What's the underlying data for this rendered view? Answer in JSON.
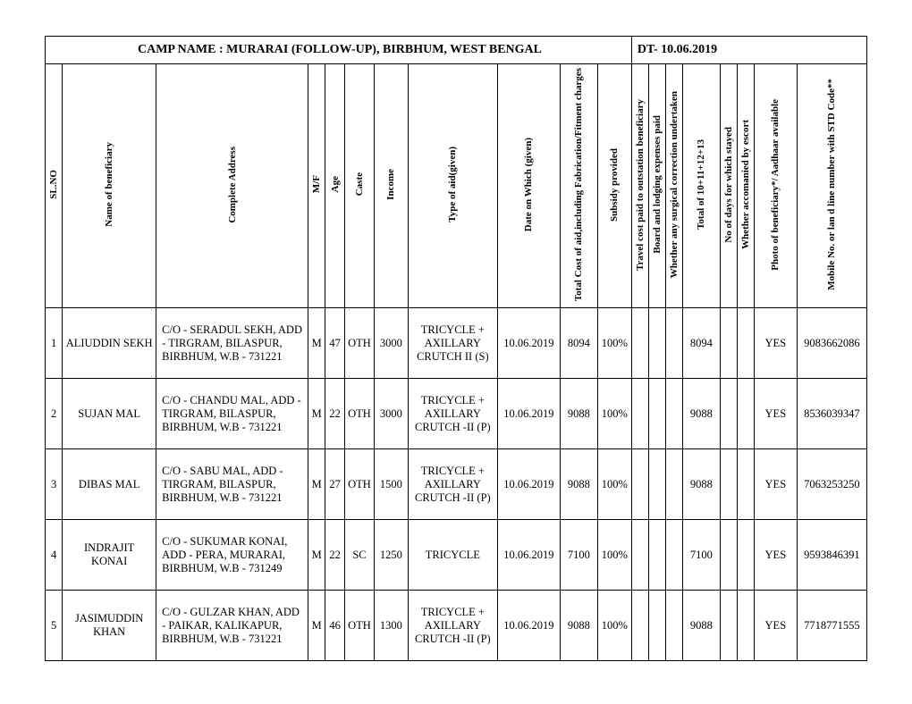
{
  "title": {
    "camp": "CAMP NAME :   MURARAI (FOLLOW-UP), BIRBHUM, WEST BENGAL",
    "date": "DT- 10.06.2019"
  },
  "headers": {
    "sl": "SL.NO",
    "name": "Name of beneficiary",
    "addr": "Complete Address",
    "mf": "M/F",
    "age": "Age",
    "caste": "Caste",
    "income": "Income",
    "aid": "Type of aid(given)",
    "date": "Date on Which (given)",
    "cost": "Total Cost of aid,including Fabrication/Fitment charges",
    "subsidy": "Subsidy provided",
    "travel": "Travel cost paid to outstation beneficiary",
    "board": "Board and lodging expenses paid",
    "surg": "Whether any surgical correction undertaken",
    "total": "Total of 10+11+12+13",
    "days": "No of days for which stayed",
    "escort": "Whether accomanied by escort",
    "photo": "Photo of beneficiary*/ Aadhaar available",
    "mobile": "Mobile No. or lan d line number with STD Code**"
  },
  "rows": [
    {
      "sl": "1",
      "name": "ALIUDDIN SEKH",
      "addr": "C/O - SERADUL SEKH, ADD - TIRGRAM, BILASPUR, BIRBHUM, W.B - 731221",
      "mf": "M",
      "age": "47",
      "caste": "OTH",
      "income": "3000",
      "aid": "TRICYCLE + AXILLARY CRUTCH II (S)",
      "date": "10.06.2019",
      "cost": "8094",
      "subsidy": "100%",
      "travel": "",
      "board": "",
      "surg": "",
      "total": "8094",
      "days": "",
      "escort": "",
      "photo": "YES",
      "mobile": "9083662086"
    },
    {
      "sl": "2",
      "name": "SUJAN MAL",
      "addr": "C/O - CHANDU MAL, ADD - TIRGRAM, BILASPUR, BIRBHUM, W.B - 731221",
      "mf": "M",
      "age": "22",
      "caste": "OTH",
      "income": "3000",
      "aid": "TRICYCLE + AXILLARY CRUTCH -II (P)",
      "date": "10.06.2019",
      "cost": "9088",
      "subsidy": "100%",
      "travel": "",
      "board": "",
      "surg": "",
      "total": "9088",
      "days": "",
      "escort": "",
      "photo": "YES",
      "mobile": "8536039347"
    },
    {
      "sl": "3",
      "name": "DIBAS MAL",
      "addr": "C/O - SABU MAL, ADD - TIRGRAM, BILASPUR, BIRBHUM, W.B - 731221",
      "mf": "M",
      "age": "27",
      "caste": "OTH",
      "income": "1500",
      "aid": "TRICYCLE + AXILLARY CRUTCH -II (P)",
      "date": "10.06.2019",
      "cost": "9088",
      "subsidy": "100%",
      "travel": "",
      "board": "",
      "surg": "",
      "total": "9088",
      "days": "",
      "escort": "",
      "photo": "YES",
      "mobile": "7063253250"
    },
    {
      "sl": "4",
      "name": "INDRAJIT  KONAI",
      "addr": "C/O - SUKUMAR KONAI, ADD - PERA, MURARAI, BIRBHUM, W.B - 731249",
      "mf": "M",
      "age": "22",
      "caste": "SC",
      "income": "1250",
      "aid": "TRICYCLE",
      "date": "10.06.2019",
      "cost": "7100",
      "subsidy": "100%",
      "travel": "",
      "board": "",
      "surg": "",
      "total": "7100",
      "days": "",
      "escort": "",
      "photo": "YES",
      "mobile": "9593846391"
    },
    {
      "sl": "5",
      "name": "JASIMUDDIN KHAN",
      "addr": "C/O - GULZAR KHAN, ADD - PAIKAR, KALIKAPUR, BIRBHUM, W.B - 731221",
      "mf": "M",
      "age": "46",
      "caste": "OTH",
      "income": "1300",
      "aid": "TRICYCLE + AXILLARY CRUTCH -II (P)",
      "date": "10.06.2019",
      "cost": "9088",
      "subsidy": "100%",
      "travel": "",
      "board": "",
      "surg": "",
      "total": "9088",
      "days": "",
      "escort": "",
      "photo": "YES",
      "mobile": "7718771555"
    }
  ]
}
